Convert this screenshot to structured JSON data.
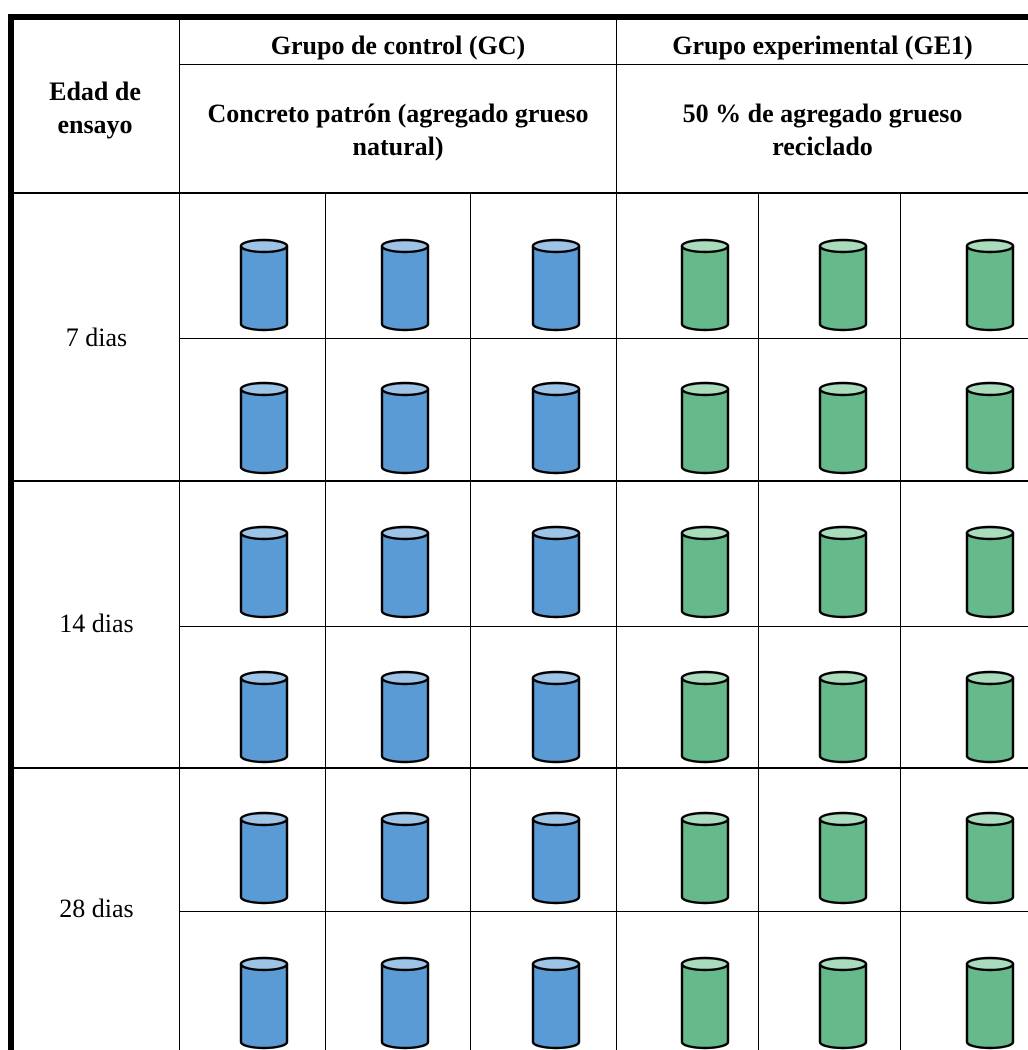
{
  "header": {
    "age_label": "Edad de ensayo",
    "control_group": "Grupo de control (GC)",
    "control_desc": "Concreto patrón (agregado grueso natural)",
    "experimental_group": "Grupo experimental (GE1)",
    "experimental_desc": "50 % de agregado grueso reciclado"
  },
  "rows": [
    {
      "age": "7 dias"
    },
    {
      "age": "14 dias"
    },
    {
      "age": "28 dias"
    }
  ],
  "specimens": {
    "control_color": "#5b9bd5",
    "control_top_color": "#9dc3e6",
    "experimental_color": "#66b98a",
    "experimental_top_color": "#a9dbbd",
    "per_group_per_age": 6,
    "icon": "concrete-cylinder-icon"
  }
}
